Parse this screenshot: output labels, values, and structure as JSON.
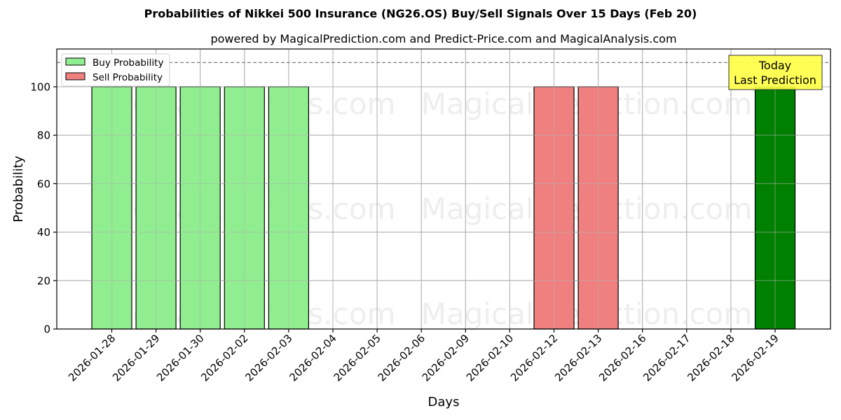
{
  "header": {
    "title": "Probabilities of Nikkei 500 Insurance (NG26.OS) Buy/Sell Signals Over 15 Days (Feb 20)",
    "subtitle": "powered by MagicalPrediction.com and Predict-Price.com and MagicalAnalysis.com"
  },
  "legend": {
    "buy_label": "Buy Probability",
    "sell_label": "Sell Probability"
  },
  "annotation": {
    "line1": "Today",
    "line2": "Last Prediction"
  },
  "watermarks": [
    "MagicalAnalysis.com",
    "MagicalPrediction.com"
  ],
  "colors": {
    "buy": "#90ee90",
    "sell": "#f08080",
    "today": "#008000",
    "annotation_bg": "#ffff44",
    "grid": "#b0b0b0"
  },
  "chart_data": {
    "type": "bar",
    "title": "Probabilities of Nikkei 500 Insurance (NG26.OS) Buy/Sell Signals Over 15 Days (Feb 20)",
    "subtitle": "powered by MagicalPrediction.com and Predict-Price.com and MagicalAnalysis.com",
    "xlabel": "Days",
    "ylabel": "Probability",
    "ylim": [
      0,
      115.6
    ],
    "yticks": [
      0,
      20,
      40,
      60,
      80,
      100
    ],
    "grid": true,
    "legend_position": "upper left",
    "reference_line": {
      "y": 110,
      "style": "dashed"
    },
    "categories": [
      "2026-01-28",
      "2026-01-29",
      "2026-01-30",
      "2026-02-02",
      "2026-02-03",
      "2026-02-04",
      "2026-02-05",
      "2026-02-06",
      "2026-02-09",
      "2026-02-10",
      "2026-02-12",
      "2026-02-13",
      "2026-02-16",
      "2026-02-17",
      "2026-02-18",
      "2026-02-19"
    ],
    "series": [
      {
        "name": "Buy Probability",
        "values": [
          100,
          100,
          100,
          100,
          100,
          0,
          0,
          0,
          0,
          0,
          0,
          0,
          0,
          0,
          0,
          100
        ]
      },
      {
        "name": "Sell Probability",
        "values": [
          0,
          0,
          0,
          0,
          0,
          0,
          0,
          0,
          0,
          0,
          100,
          100,
          0,
          0,
          0,
          0
        ]
      }
    ],
    "highlight": {
      "category": "2026-02-19",
      "label": "Today\nLast Prediction",
      "color": "#008000"
    }
  }
}
